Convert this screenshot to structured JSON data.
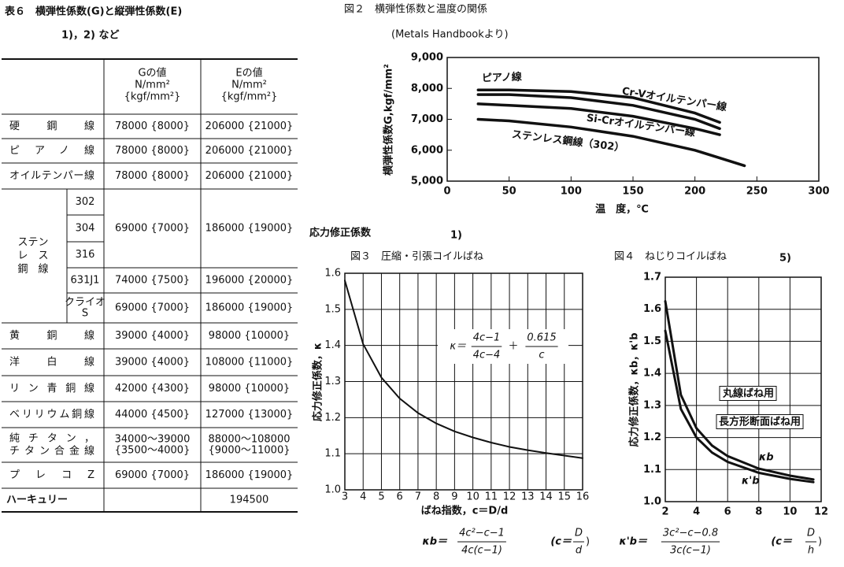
{
  "table_title": "表６　横弾性係数(G)と縦弾性係数(E)",
  "table_note": "1)，2) など",
  "table": {
    "header": {
      "g": [
        "Gの値",
        "N/mm²",
        "{kgf/mm²}"
      ],
      "e": [
        "Eの値",
        "N/mm²",
        "{kgf/mm²}"
      ]
    },
    "rows": [
      {
        "name": "硬鋼線",
        "g": "78000 {8000}",
        "e": "206000 {21000}"
      },
      {
        "name": "ピアノ線",
        "g": "78000 {8000}",
        "e": "206000 {21000}"
      },
      {
        "name": "オイルテンパー線",
        "g": "78000 {8000}",
        "e": "206000 {21000}"
      },
      {
        "name": "黄銅線",
        "g": "39000 {4000}",
        "e": "98000 {10000}"
      },
      {
        "name": "洋白線",
        "g": "39000 {4000}",
        "e": "108000 {11000}"
      },
      {
        "name": "リン青銅線",
        "g": "42000 {4300}",
        "e": "98000 {10000}"
      },
      {
        "name": "ベリリウム銅線",
        "g": "44000 {4500}",
        "e": "127000 {13000}"
      },
      {
        "name": [
          "純チタン，",
          "チタン合金線"
        ],
        "g": [
          "34000〜39000",
          "{3500〜4000}"
        ],
        "e": [
          "88000〜108000",
          "{9000〜11000}"
        ]
      },
      {
        "name": "プレコZ",
        "g": "69000 {7000}",
        "e": "186000 {19000}"
      },
      {
        "name": "ハーキュリー",
        "e": "194500"
      }
    ],
    "stainless": {
      "label": [
        "ステン",
        "レ　ス",
        "鋼　線"
      ],
      "shared": {
        "g": "69000 {7000}",
        "e": "186000 {19000}"
      },
      "rows": [
        {
          "grade": "302"
        },
        {
          "grade": "304"
        },
        {
          "grade": "316"
        },
        {
          "grade": "631J1",
          "g": "74000 {7500}",
          "e": "196000 {20000}"
        },
        {
          "grade": [
            "クライオ",
            "S"
          ],
          "g": "69000 {7000}",
          "e": "186000 {19000}"
        }
      ]
    }
  },
  "section": {
    "title": "応力修正係数",
    "note": "1)"
  },
  "chart_data": [
    {
      "type": "line",
      "title": "図２　横弾性係数と温度の関係",
      "subtitle": "(Metals Handbookより)",
      "x_label": "温　度，℃",
      "y_label": "横弾性係数G,kgf/mm²",
      "xlim": [
        0,
        300
      ],
      "xticks": [
        0,
        50,
        100,
        150,
        200,
        250,
        300
      ],
      "ylim": [
        5000,
        9000
      ],
      "yticks": [
        {
          "value": 5000,
          "label": "5,000"
        },
        {
          "value": 6000,
          "label": "6,000"
        },
        {
          "value": 7000,
          "label": "7,000"
        },
        {
          "value": 8000,
          "label": "8,000"
        },
        {
          "value": 9000,
          "label": "9,000"
        }
      ],
      "grid": false,
      "x": [
        25,
        50,
        100,
        150,
        200,
        220,
        240
      ],
      "series": [
        {
          "name": "ピアノ線",
          "color": "#111111",
          "values": [
            7950,
            7950,
            7900,
            7700,
            7200,
            6900,
            null
          ]
        },
        {
          "name": "Cr-Vオイルテンパー線",
          "color": "#111111",
          "values": [
            7800,
            7800,
            7700,
            7450,
            7000,
            6700,
            null
          ]
        },
        {
          "name": "Si-Crオイルテンパー線",
          "color": "#111111",
          "values": [
            7500,
            7450,
            7350,
            7100,
            6700,
            6500,
            null
          ]
        },
        {
          "name": "ステンレス鋼線（302）",
          "color": "#111111",
          "values": [
            7000,
            6950,
            6750,
            6450,
            6000,
            5750,
            5500
          ]
        }
      ]
    },
    {
      "type": "line",
      "title": "図３　圧縮・引張コイルばね",
      "x_label": "ばね指数，c＝D/d",
      "y_label": "応力修正係数，κ",
      "xlim": [
        3,
        16
      ],
      "xticks": [
        3,
        4,
        5,
        6,
        7,
        8,
        9,
        10,
        11,
        12,
        13,
        14,
        15,
        16
      ],
      "ylim": [
        1,
        1.6
      ],
      "yticks": [
        {
          "value": 1,
          "label": "1.0"
        },
        1.1,
        1.2,
        1.3,
        1.4,
        1.5,
        1.6
      ],
      "grid": true,
      "x": [
        3,
        4,
        5,
        6,
        7,
        8,
        9,
        10,
        11,
        12,
        13,
        14,
        15,
        16
      ],
      "values": [
        1.58,
        1.404,
        1.311,
        1.253,
        1.213,
        1.184,
        1.162,
        1.145,
        1.131,
        1.119,
        1.11,
        1.102,
        1.095,
        1.088
      ],
      "color": "#111111",
      "formula": {
        "lhs": "κ＝",
        "num": "4c−1",
        "den": "4c−4",
        "op": "＋",
        "num2": "0.615",
        "den2": "c"
      }
    },
    {
      "type": "line",
      "title": "図４　ねじりコイルばね",
      "title_note": "5)",
      "y_label": "応力修正係数，κb，κ'b",
      "xlim": [
        2,
        12
      ],
      "xticks": [
        2,
        4,
        6,
        8,
        10,
        12
      ],
      "ylim": [
        1,
        1.7
      ],
      "yticks": [
        {
          "value": 1,
          "label": "1.0"
        },
        1.1,
        1.2,
        1.3,
        1.4,
        1.5,
        1.6,
        1.7
      ],
      "grid": true,
      "x": [
        2,
        3,
        4,
        5,
        6,
        8,
        10,
        11.5
      ],
      "series": [
        {
          "name": "丸線ばね用",
          "label": "κb",
          "color": "#111111",
          "values": [
            1.625,
            1.333,
            1.229,
            1.175,
            1.142,
            1.103,
            1.081,
            1.069
          ]
        },
        {
          "name": "長方形断面ばね用",
          "label": "κ'b",
          "color": "#111111",
          "values": [
            1.533,
            1.289,
            1.2,
            1.153,
            1.124,
            1.09,
            1.071,
            1.061
          ]
        }
      ]
    }
  ],
  "formulas": [
    {
      "lhs": "κb＝",
      "num": "4c²−c−1",
      "den": "4c(c−1)"
    },
    {
      "lhs": "(c＝",
      "num": "D",
      "den": "d",
      "rhs": ")"
    },
    {
      "lhs": "κ'b＝",
      "num": "3c²−c−0.8",
      "den": "3c(c−1)"
    },
    {
      "lhs": "(c＝",
      "num": "D",
      "den": "h",
      "rhs": ")"
    }
  ]
}
